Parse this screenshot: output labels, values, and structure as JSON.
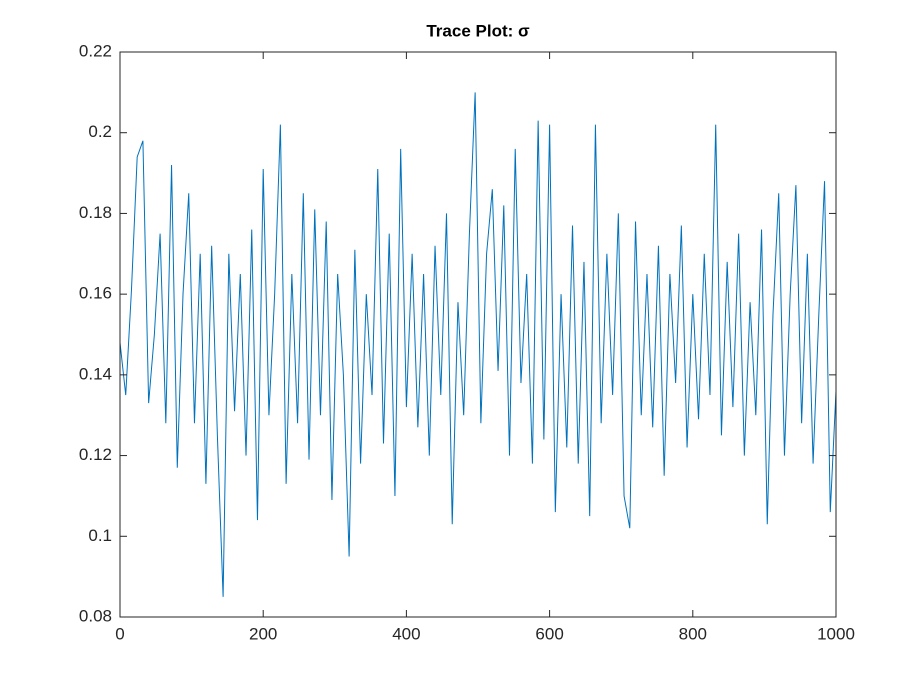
{
  "chart_data": {
    "type": "line",
    "title": "Trace  Plot:  σ",
    "color": "#0072bd",
    "x": [
      0,
      8,
      16,
      24,
      32,
      40,
      48,
      56,
      64,
      72,
      80,
      88,
      96,
      104,
      112,
      120,
      128,
      136,
      144,
      152,
      160,
      168,
      176,
      184,
      192,
      200,
      208,
      216,
      224,
      232,
      240,
      248,
      256,
      264,
      272,
      280,
      288,
      296,
      304,
      312,
      320,
      328,
      336,
      344,
      352,
      360,
      368,
      376,
      384,
      392,
      400,
      408,
      416,
      424,
      432,
      440,
      448,
      456,
      464,
      472,
      480,
      488,
      496,
      504,
      512,
      520,
      528,
      536,
      544,
      552,
      560,
      568,
      576,
      584,
      592,
      600,
      608,
      616,
      624,
      632,
      640,
      648,
      656,
      664,
      672,
      680,
      688,
      696,
      704,
      712,
      720,
      728,
      736,
      744,
      752,
      760,
      768,
      776,
      784,
      792,
      800,
      808,
      816,
      824,
      832,
      840,
      848,
      856,
      864,
      872,
      880,
      888,
      896,
      904,
      912,
      920,
      928,
      936,
      944,
      952,
      960,
      968,
      976,
      984,
      992,
      1000
    ],
    "values": [
      0.148,
      0.135,
      0.161,
      0.194,
      0.198,
      0.133,
      0.15,
      0.175,
      0.128,
      0.192,
      0.117,
      0.16,
      0.185,
      0.128,
      0.17,
      0.113,
      0.172,
      0.125,
      0.085,
      0.17,
      0.131,
      0.165,
      0.12,
      0.176,
      0.104,
      0.191,
      0.13,
      0.16,
      0.202,
      0.113,
      0.165,
      0.128,
      0.185,
      0.119,
      0.181,
      0.13,
      0.178,
      0.109,
      0.165,
      0.14,
      0.095,
      0.171,
      0.118,
      0.16,
      0.135,
      0.191,
      0.123,
      0.175,
      0.11,
      0.196,
      0.132,
      0.17,
      0.127,
      0.165,
      0.12,
      0.172,
      0.135,
      0.18,
      0.103,
      0.158,
      0.13,
      0.175,
      0.21,
      0.128,
      0.17,
      0.186,
      0.141,
      0.182,
      0.12,
      0.196,
      0.138,
      0.165,
      0.118,
      0.203,
      0.124,
      0.202,
      0.106,
      0.16,
      0.122,
      0.177,
      0.118,
      0.168,
      0.105,
      0.202,
      0.128,
      0.17,
      0.135,
      0.18,
      0.11,
      0.102,
      0.178,
      0.13,
      0.165,
      0.127,
      0.172,
      0.115,
      0.165,
      0.138,
      0.177,
      0.122,
      0.16,
      0.129,
      0.17,
      0.135,
      0.202,
      0.125,
      0.168,
      0.132,
      0.175,
      0.12,
      0.158,
      0.13,
      0.176,
      0.103,
      0.155,
      0.185,
      0.12,
      0.16,
      0.187,
      0.128,
      0.17,
      0.118,
      0.155,
      0.188,
      0.106,
      0.136
    ],
    "xlim": [
      0,
      1000
    ],
    "xticks": [
      0,
      200,
      400,
      600,
      800,
      1000
    ],
    "ylim": [
      0.08,
      0.22
    ],
    "yticks": [
      0.08,
      0.1,
      0.12,
      0.14,
      0.16,
      0.18,
      0.2,
      0.22
    ]
  }
}
